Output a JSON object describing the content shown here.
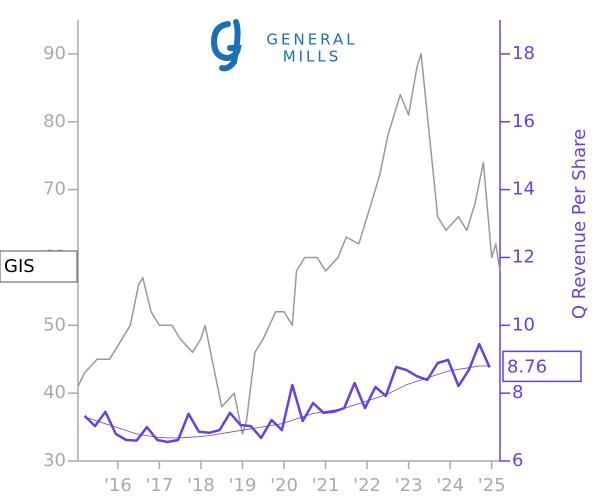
{
  "chart_data": {
    "type": "line",
    "logo": {
      "line1": "GENERAL",
      "line2": "MILLS"
    },
    "y2label": "Q Revenue Per Share",
    "xlim": [
      2015.04,
      2025.2
    ],
    "xticks": [
      {
        "value": 2016,
        "label": "'16"
      },
      {
        "value": 2017,
        "label": "'17"
      },
      {
        "value": 2018,
        "label": "'18"
      },
      {
        "value": 2019,
        "label": "'19"
      },
      {
        "value": 2020,
        "label": "'20"
      },
      {
        "value": 2021,
        "label": "'21"
      },
      {
        "value": 2022,
        "label": "'22"
      },
      {
        "value": 2023,
        "label": "'23"
      },
      {
        "value": 2024,
        "label": "'24"
      },
      {
        "value": 2025,
        "label": "'25"
      }
    ],
    "ylim": [
      30,
      95
    ],
    "yticks": [
      30,
      40,
      50,
      60,
      70,
      80,
      90
    ],
    "y2lim": [
      6,
      19
    ],
    "y2ticks": [
      6,
      8,
      10,
      12,
      14,
      16,
      18
    ],
    "series": [
      {
        "name": "GIS",
        "color": "#999999",
        "x": [
          2015.04,
          2015.2,
          2015.5,
          2015.8,
          2016.0,
          2016.3,
          2016.5,
          2016.6,
          2016.8,
          2017.0,
          2017.3,
          2017.5,
          2017.8,
          2018.0,
          2018.1,
          2018.3,
          2018.5,
          2018.8,
          2019.0,
          2019.1,
          2019.3,
          2019.5,
          2019.8,
          2020.0,
          2020.2,
          2020.3,
          2020.5,
          2020.8,
          2021.0,
          2021.3,
          2021.5,
          2021.8,
          2022.0,
          2022.3,
          2022.5,
          2022.8,
          2023.0,
          2023.2,
          2023.3,
          2023.5,
          2023.7,
          2023.9,
          2024.2,
          2024.4,
          2024.6,
          2024.8,
          2025.0,
          2025.1,
          2025.2
        ],
        "values": [
          41,
          43,
          45,
          45,
          47,
          50,
          56,
          57,
          52,
          50,
          50,
          48,
          46,
          48,
          50,
          44,
          38,
          40,
          34,
          36,
          46,
          48,
          52,
          52,
          50,
          58,
          60,
          60,
          58,
          60,
          63,
          62,
          66,
          72,
          78,
          84,
          81,
          88,
          90,
          78,
          66,
          64,
          66,
          64,
          68,
          74,
          60,
          62,
          58
        ]
      },
      {
        "color": "#6b3fe0",
        "axis": "y2",
        "x": [
          2015.2,
          2015.45,
          2015.7,
          2015.95,
          2016.2,
          2016.45,
          2016.7,
          2016.95,
          2017.2,
          2017.45,
          2017.7,
          2017.95,
          2018.2,
          2018.45,
          2018.7,
          2018.95,
          2019.2,
          2019.45,
          2019.7,
          2019.95,
          2020.2,
          2020.45,
          2020.7,
          2020.95,
          2021.2,
          2021.45,
          2021.7,
          2021.95,
          2022.2,
          2022.45,
          2022.7,
          2022.95,
          2023.2,
          2023.45,
          2023.7,
          2023.95,
          2024.2,
          2024.45,
          2024.7,
          2024.95
        ],
        "values": [
          7.33,
          7.03,
          7.45,
          6.8,
          6.62,
          6.6,
          7.0,
          6.62,
          6.56,
          6.62,
          7.39,
          6.86,
          6.83,
          6.91,
          7.42,
          7.06,
          7.03,
          6.68,
          7.21,
          6.91,
          8.24,
          7.18,
          7.71,
          7.42,
          7.45,
          7.56,
          8.3,
          7.56,
          8.18,
          7.92,
          8.77,
          8.68,
          8.5,
          8.39,
          8.89,
          8.98,
          8.21,
          8.68,
          9.45,
          8.76
        ]
      },
      {
        "color": "#6b3fe0",
        "axis": "y2",
        "x": [
          2015.2,
          2015.45,
          2015.7,
          2015.95,
          2016.2,
          2016.45,
          2016.7,
          2016.95,
          2017.2,
          2017.45,
          2017.7,
          2017.95,
          2018.2,
          2018.45,
          2018.7,
          2018.95,
          2019.2,
          2019.45,
          2019.7,
          2019.95,
          2020.2,
          2020.45,
          2020.7,
          2020.95,
          2021.2,
          2021.45,
          2021.7,
          2021.95,
          2022.2,
          2022.45,
          2022.7,
          2022.95,
          2023.2,
          2023.45,
          2023.7,
          2023.95,
          2024.2,
          2024.45,
          2024.7,
          2024.95
        ],
        "values": [
          7.3,
          7.2,
          7.1,
          7.0,
          6.9,
          6.8,
          6.75,
          6.7,
          6.68,
          6.68,
          6.7,
          6.72,
          6.75,
          6.8,
          6.85,
          6.9,
          6.95,
          7.0,
          7.05,
          7.1,
          7.2,
          7.3,
          7.4,
          7.45,
          7.5,
          7.55,
          7.65,
          7.75,
          7.85,
          7.95,
          8.1,
          8.25,
          8.35,
          8.45,
          8.55,
          8.65,
          8.7,
          8.75,
          8.8,
          8.8
        ]
      }
    ]
  }
}
